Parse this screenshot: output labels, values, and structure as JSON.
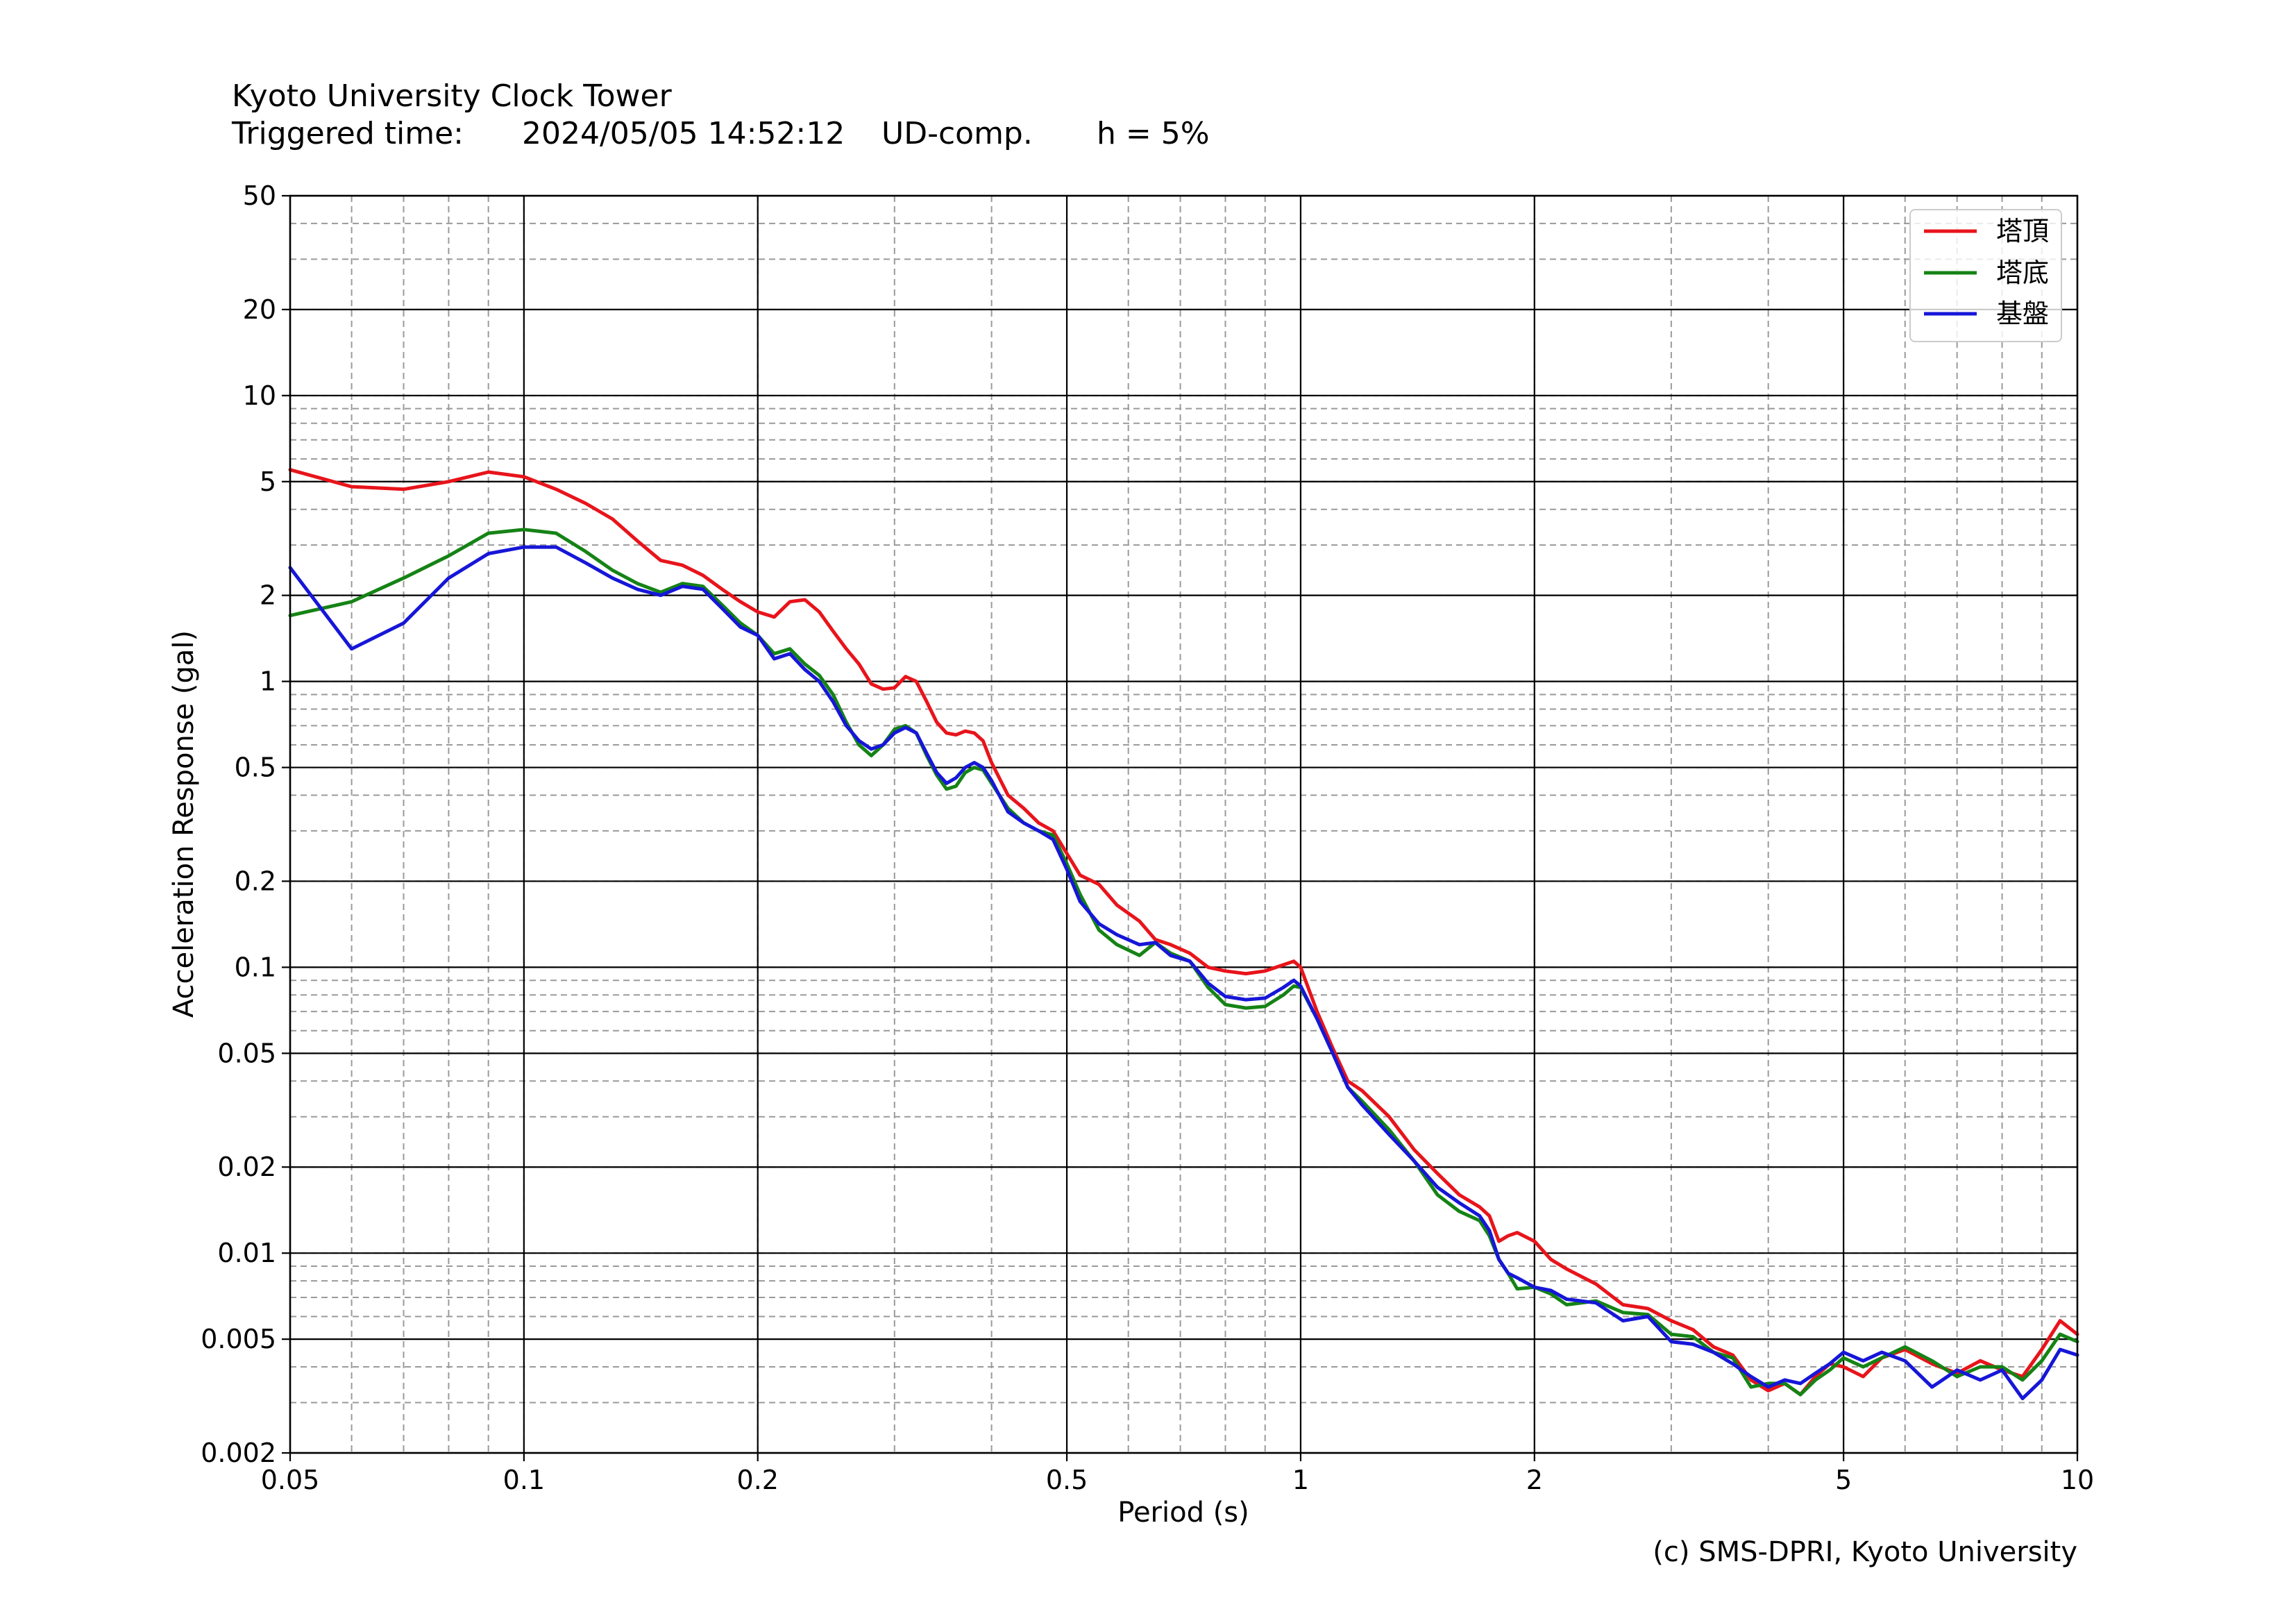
{
  "header": {
    "title": "Kyoto University Clock Tower",
    "triggered_label": "Triggered time:",
    "triggered_value": "2024/05/05 14:52:12",
    "component": "UD-comp.",
    "damping": "h = 5%"
  },
  "credit": "(c) SMS-DPRI, Kyoto University",
  "chart_data": {
    "type": "line",
    "xlabel": "Period (s)",
    "ylabel": "Acceleration Response (gal)",
    "xscale": "log",
    "yscale": "log",
    "xlim": [
      0.05,
      10
    ],
    "ylim": [
      0.002,
      50
    ],
    "grid": true,
    "legend_position": "top-right",
    "x_ticks": [
      0.05,
      0.1,
      0.2,
      0.5,
      1,
      2,
      5,
      10
    ],
    "x_tick_labels": [
      "0.05",
      "0.1",
      "0.2",
      "0.5",
      "1",
      "2",
      "5",
      "10"
    ],
    "y_ticks": [
      0.002,
      0.005,
      0.01,
      0.02,
      0.05,
      0.1,
      0.2,
      0.5,
      1,
      2,
      5,
      10,
      20,
      50
    ],
    "y_tick_labels": [
      "0.002",
      "0.005",
      "0.01",
      "0.02",
      "0.05",
      "0.1",
      "0.2",
      "0.5",
      "1",
      "2",
      "5",
      "10",
      "20",
      "50"
    ],
    "series": [
      {
        "name": "塔頂",
        "color": "#e8141b",
        "points": [
          [
            0.05,
            5.5
          ],
          [
            0.06,
            4.8
          ],
          [
            0.07,
            4.7
          ],
          [
            0.08,
            5.0
          ],
          [
            0.09,
            5.4
          ],
          [
            0.1,
            5.2
          ],
          [
            0.11,
            4.7
          ],
          [
            0.12,
            4.2
          ],
          [
            0.13,
            3.7
          ],
          [
            0.14,
            3.1
          ],
          [
            0.15,
            2.65
          ],
          [
            0.16,
            2.55
          ],
          [
            0.17,
            2.35
          ],
          [
            0.18,
            2.1
          ],
          [
            0.19,
            1.9
          ],
          [
            0.2,
            1.75
          ],
          [
            0.21,
            1.68
          ],
          [
            0.22,
            1.9
          ],
          [
            0.23,
            1.93
          ],
          [
            0.24,
            1.75
          ],
          [
            0.25,
            1.5
          ],
          [
            0.26,
            1.3
          ],
          [
            0.27,
            1.15
          ],
          [
            0.28,
            0.98
          ],
          [
            0.29,
            0.94
          ],
          [
            0.3,
            0.95
          ],
          [
            0.31,
            1.04
          ],
          [
            0.32,
            1.0
          ],
          [
            0.33,
            0.85
          ],
          [
            0.34,
            0.72
          ],
          [
            0.35,
            0.66
          ],
          [
            0.36,
            0.65
          ],
          [
            0.37,
            0.67
          ],
          [
            0.38,
            0.66
          ],
          [
            0.39,
            0.62
          ],
          [
            0.4,
            0.52
          ],
          [
            0.42,
            0.4
          ],
          [
            0.44,
            0.36
          ],
          [
            0.46,
            0.32
          ],
          [
            0.48,
            0.3
          ],
          [
            0.5,
            0.25
          ],
          [
            0.52,
            0.21
          ],
          [
            0.55,
            0.195
          ],
          [
            0.58,
            0.165
          ],
          [
            0.62,
            0.145
          ],
          [
            0.65,
            0.125
          ],
          [
            0.68,
            0.12
          ],
          [
            0.72,
            0.112
          ],
          [
            0.76,
            0.1
          ],
          [
            0.8,
            0.097
          ],
          [
            0.85,
            0.095
          ],
          [
            0.9,
            0.097
          ],
          [
            0.95,
            0.102
          ],
          [
            0.98,
            0.105
          ],
          [
            1.0,
            0.1
          ],
          [
            1.05,
            0.07
          ],
          [
            1.1,
            0.052
          ],
          [
            1.15,
            0.04
          ],
          [
            1.2,
            0.037
          ],
          [
            1.3,
            0.03
          ],
          [
            1.4,
            0.023
          ],
          [
            1.5,
            0.019
          ],
          [
            1.6,
            0.016
          ],
          [
            1.7,
            0.0145
          ],
          [
            1.75,
            0.0135
          ],
          [
            1.8,
            0.011
          ],
          [
            1.85,
            0.0115
          ],
          [
            1.9,
            0.0118
          ],
          [
            2.0,
            0.011
          ],
          [
            2.1,
            0.0095
          ],
          [
            2.2,
            0.0088
          ],
          [
            2.4,
            0.0078
          ],
          [
            2.6,
            0.0066
          ],
          [
            2.8,
            0.0064
          ],
          [
            3.0,
            0.0058
          ],
          [
            3.2,
            0.0054
          ],
          [
            3.4,
            0.0047
          ],
          [
            3.6,
            0.0044
          ],
          [
            3.8,
            0.0036
          ],
          [
            4.0,
            0.0033
          ],
          [
            4.2,
            0.0035
          ],
          [
            4.4,
            0.0032
          ],
          [
            4.6,
            0.0037
          ],
          [
            4.8,
            0.0041
          ],
          [
            5.0,
            0.004
          ],
          [
            5.3,
            0.0037
          ],
          [
            5.6,
            0.0043
          ],
          [
            6.0,
            0.0046
          ],
          [
            6.5,
            0.0041
          ],
          [
            7.0,
            0.0038
          ],
          [
            7.5,
            0.0042
          ],
          [
            8.0,
            0.0039
          ],
          [
            8.5,
            0.0037
          ],
          [
            9.0,
            0.0046
          ],
          [
            9.5,
            0.0058
          ],
          [
            10.0,
            0.0052
          ]
        ]
      },
      {
        "name": "塔底",
        "color": "#158315",
        "points": [
          [
            0.05,
            1.7
          ],
          [
            0.06,
            1.9
          ],
          [
            0.07,
            2.3
          ],
          [
            0.08,
            2.75
          ],
          [
            0.09,
            3.3
          ],
          [
            0.1,
            3.4
          ],
          [
            0.11,
            3.3
          ],
          [
            0.12,
            2.85
          ],
          [
            0.13,
            2.45
          ],
          [
            0.14,
            2.2
          ],
          [
            0.15,
            2.05
          ],
          [
            0.16,
            2.2
          ],
          [
            0.17,
            2.15
          ],
          [
            0.18,
            1.85
          ],
          [
            0.19,
            1.6
          ],
          [
            0.2,
            1.45
          ],
          [
            0.21,
            1.25
          ],
          [
            0.22,
            1.3
          ],
          [
            0.23,
            1.15
          ],
          [
            0.24,
            1.05
          ],
          [
            0.25,
            0.9
          ],
          [
            0.26,
            0.72
          ],
          [
            0.27,
            0.6
          ],
          [
            0.28,
            0.55
          ],
          [
            0.29,
            0.6
          ],
          [
            0.3,
            0.68
          ],
          [
            0.31,
            0.7
          ],
          [
            0.32,
            0.66
          ],
          [
            0.33,
            0.55
          ],
          [
            0.34,
            0.47
          ],
          [
            0.35,
            0.42
          ],
          [
            0.36,
            0.43
          ],
          [
            0.37,
            0.48
          ],
          [
            0.38,
            0.5
          ],
          [
            0.39,
            0.49
          ],
          [
            0.4,
            0.44
          ],
          [
            0.42,
            0.36
          ],
          [
            0.44,
            0.32
          ],
          [
            0.46,
            0.3
          ],
          [
            0.48,
            0.29
          ],
          [
            0.5,
            0.23
          ],
          [
            0.52,
            0.18
          ],
          [
            0.55,
            0.135
          ],
          [
            0.58,
            0.12
          ],
          [
            0.62,
            0.11
          ],
          [
            0.65,
            0.122
          ],
          [
            0.68,
            0.112
          ],
          [
            0.72,
            0.105
          ],
          [
            0.76,
            0.085
          ],
          [
            0.8,
            0.074
          ],
          [
            0.85,
            0.072
          ],
          [
            0.9,
            0.073
          ],
          [
            0.95,
            0.08
          ],
          [
            0.98,
            0.086
          ],
          [
            1.0,
            0.085
          ],
          [
            1.05,
            0.066
          ],
          [
            1.1,
            0.05
          ],
          [
            1.15,
            0.038
          ],
          [
            1.2,
            0.034
          ],
          [
            1.3,
            0.027
          ],
          [
            1.4,
            0.021
          ],
          [
            1.5,
            0.016
          ],
          [
            1.6,
            0.014
          ],
          [
            1.7,
            0.013
          ],
          [
            1.75,
            0.0115
          ],
          [
            1.8,
            0.0095
          ],
          [
            1.85,
            0.0085
          ],
          [
            1.9,
            0.0075
          ],
          [
            2.0,
            0.0076
          ],
          [
            2.1,
            0.0072
          ],
          [
            2.2,
            0.0066
          ],
          [
            2.4,
            0.0068
          ],
          [
            2.6,
            0.0062
          ],
          [
            2.8,
            0.0061
          ],
          [
            3.0,
            0.0052
          ],
          [
            3.2,
            0.0051
          ],
          [
            3.4,
            0.0045
          ],
          [
            3.6,
            0.0043
          ],
          [
            3.8,
            0.0034
          ],
          [
            4.0,
            0.0035
          ],
          [
            4.2,
            0.0035
          ],
          [
            4.4,
            0.0032
          ],
          [
            4.6,
            0.0036
          ],
          [
            4.8,
            0.0039
          ],
          [
            5.0,
            0.0043
          ],
          [
            5.3,
            0.004
          ],
          [
            5.6,
            0.0043
          ],
          [
            6.0,
            0.0047
          ],
          [
            6.5,
            0.0042
          ],
          [
            7.0,
            0.0037
          ],
          [
            7.5,
            0.004
          ],
          [
            8.0,
            0.004
          ],
          [
            8.5,
            0.0036
          ],
          [
            9.0,
            0.0042
          ],
          [
            9.5,
            0.0052
          ],
          [
            10.0,
            0.0049
          ]
        ]
      },
      {
        "name": "基盤",
        "color": "#1616d8",
        "points": [
          [
            0.05,
            2.5
          ],
          [
            0.06,
            1.3
          ],
          [
            0.07,
            1.6
          ],
          [
            0.08,
            2.3
          ],
          [
            0.09,
            2.8
          ],
          [
            0.1,
            2.95
          ],
          [
            0.11,
            2.95
          ],
          [
            0.12,
            2.6
          ],
          [
            0.13,
            2.3
          ],
          [
            0.14,
            2.1
          ],
          [
            0.15,
            2.0
          ],
          [
            0.16,
            2.15
          ],
          [
            0.17,
            2.1
          ],
          [
            0.18,
            1.8
          ],
          [
            0.19,
            1.55
          ],
          [
            0.2,
            1.45
          ],
          [
            0.21,
            1.2
          ],
          [
            0.22,
            1.25
          ],
          [
            0.23,
            1.1
          ],
          [
            0.24,
            1.0
          ],
          [
            0.25,
            0.85
          ],
          [
            0.26,
            0.7
          ],
          [
            0.27,
            0.62
          ],
          [
            0.28,
            0.58
          ],
          [
            0.29,
            0.6
          ],
          [
            0.3,
            0.66
          ],
          [
            0.31,
            0.69
          ],
          [
            0.32,
            0.66
          ],
          [
            0.33,
            0.56
          ],
          [
            0.34,
            0.48
          ],
          [
            0.35,
            0.44
          ],
          [
            0.36,
            0.46
          ],
          [
            0.37,
            0.5
          ],
          [
            0.38,
            0.52
          ],
          [
            0.39,
            0.5
          ],
          [
            0.4,
            0.45
          ],
          [
            0.42,
            0.35
          ],
          [
            0.44,
            0.32
          ],
          [
            0.46,
            0.3
          ],
          [
            0.48,
            0.28
          ],
          [
            0.5,
            0.22
          ],
          [
            0.52,
            0.17
          ],
          [
            0.55,
            0.142
          ],
          [
            0.58,
            0.13
          ],
          [
            0.62,
            0.12
          ],
          [
            0.65,
            0.122
          ],
          [
            0.68,
            0.11
          ],
          [
            0.72,
            0.105
          ],
          [
            0.76,
            0.088
          ],
          [
            0.8,
            0.079
          ],
          [
            0.85,
            0.077
          ],
          [
            0.9,
            0.078
          ],
          [
            0.95,
            0.085
          ],
          [
            0.98,
            0.09
          ],
          [
            1.0,
            0.086
          ],
          [
            1.05,
            0.066
          ],
          [
            1.1,
            0.05
          ],
          [
            1.15,
            0.038
          ],
          [
            1.2,
            0.033
          ],
          [
            1.3,
            0.026
          ],
          [
            1.4,
            0.021
          ],
          [
            1.5,
            0.017
          ],
          [
            1.6,
            0.015
          ],
          [
            1.7,
            0.0135
          ],
          [
            1.75,
            0.012
          ],
          [
            1.8,
            0.0095
          ],
          [
            1.85,
            0.0085
          ],
          [
            1.9,
            0.0082
          ],
          [
            2.0,
            0.0076
          ],
          [
            2.1,
            0.0074
          ],
          [
            2.2,
            0.0069
          ],
          [
            2.4,
            0.0067
          ],
          [
            2.6,
            0.0058
          ],
          [
            2.8,
            0.006
          ],
          [
            3.0,
            0.0049
          ],
          [
            3.2,
            0.0048
          ],
          [
            3.4,
            0.0045
          ],
          [
            3.6,
            0.0041
          ],
          [
            3.8,
            0.0037
          ],
          [
            4.0,
            0.0034
          ],
          [
            4.2,
            0.0036
          ],
          [
            4.4,
            0.0035
          ],
          [
            4.6,
            0.0038
          ],
          [
            4.8,
            0.0041
          ],
          [
            5.0,
            0.0045
          ],
          [
            5.3,
            0.0042
          ],
          [
            5.6,
            0.0045
          ],
          [
            6.0,
            0.0042
          ],
          [
            6.5,
            0.0034
          ],
          [
            7.0,
            0.0039
          ],
          [
            7.5,
            0.0036
          ],
          [
            8.0,
            0.0039
          ],
          [
            8.5,
            0.0031
          ],
          [
            9.0,
            0.0036
          ],
          [
            9.5,
            0.0046
          ],
          [
            10.0,
            0.0044
          ]
        ]
      }
    ]
  }
}
